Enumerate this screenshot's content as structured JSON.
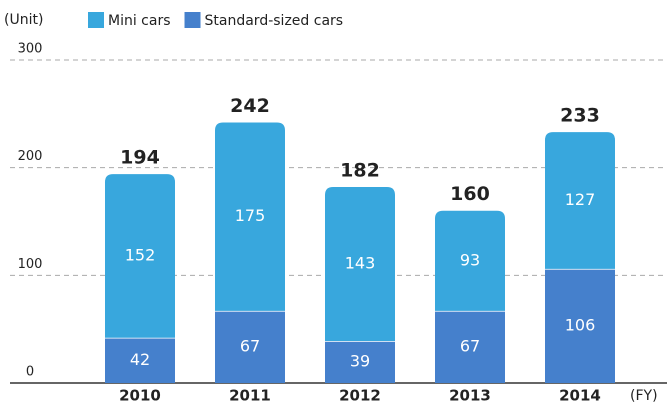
{
  "chart_data": {
    "type": "stacked_bar",
    "y_axis_label": "(Unit)",
    "x_axis_label": "(FY)",
    "categories": [
      "2010",
      "2011",
      "2012",
      "2013",
      "2014"
    ],
    "series": [
      {
        "name": "Standard-sized cars",
        "color": "#4580cc",
        "values": [
          42,
          67,
          39,
          67,
          106
        ]
      },
      {
        "name": "Mini cars",
        "color": "#38a7dd",
        "values": [
          152,
          175,
          143,
          93,
          127
        ]
      }
    ],
    "totals": [
      194,
      242,
      182,
      160,
      233
    ],
    "ylim": [
      0,
      300
    ],
    "yticks": [
      0,
      100,
      200,
      300
    ],
    "grid": true
  }
}
